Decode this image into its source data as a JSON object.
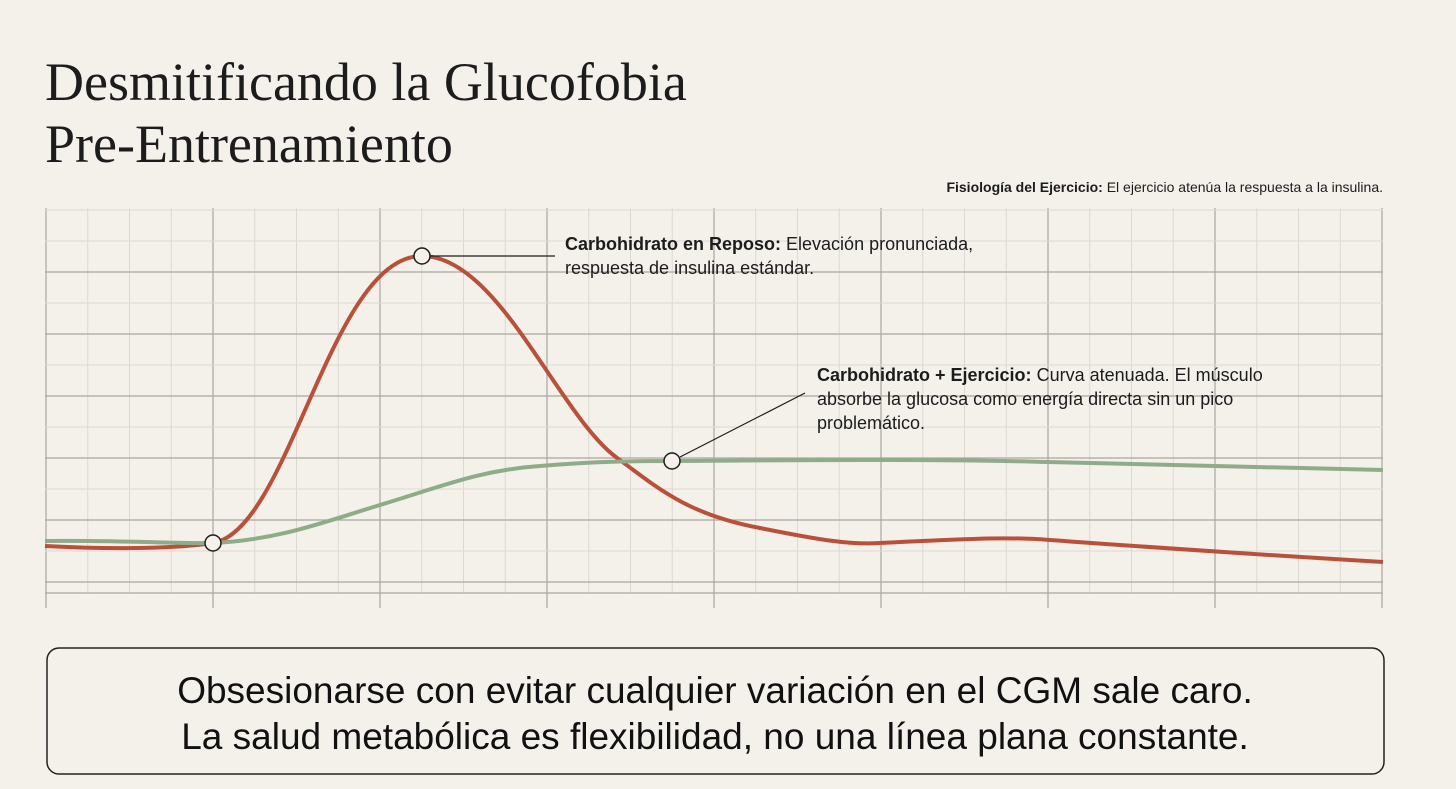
{
  "header": {
    "title_lines": [
      "Desmitificando la Glucofobia",
      "Pre-Entrenamiento"
    ],
    "subtitle": {
      "bold": "Fisiología del Ejercicio:",
      "text": "El ejercicio atenúa la respuesta a la insulina."
    }
  },
  "annotations": [
    {
      "bold": "Carbohidrato en Reposo:",
      "lines": [
        "Elevación pronunciada,",
        "respuesta de insulina estándar."
      ]
    },
    {
      "bold": "Carbohidrato + Ejercicio:",
      "lines": [
        "Curva atenuada. El músculo",
        "absorbe la glucosa como energía directa sin un pico",
        "problemático."
      ]
    }
  ],
  "footer": {
    "lines": [
      "Obsesionarse con evitar cualquier variación en el CGM sale caro.",
      "La salud metabólica es flexibilidad, no una línea plana constante."
    ]
  }
}
